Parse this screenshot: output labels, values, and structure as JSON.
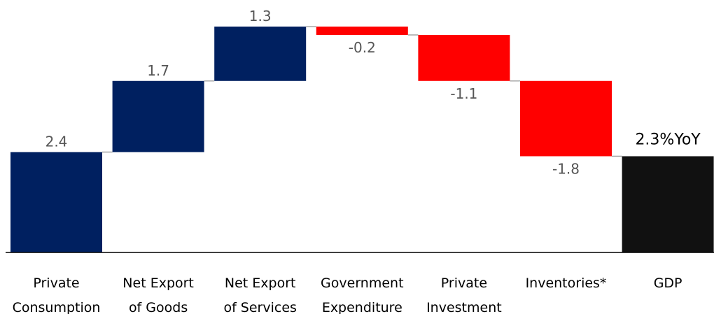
{
  "chart_data": {
    "type": "bar",
    "subtype": "waterfall",
    "title": "",
    "xlabel": "",
    "ylabel": "",
    "categories": [
      [
        "Private",
        "Consumption"
      ],
      [
        "Net Export",
        "of Goods"
      ],
      [
        "Net Export",
        "of Services"
      ],
      [
        "Government",
        "Expenditure"
      ],
      [
        "Private",
        "Investment"
      ],
      [
        "Inventories*"
      ],
      [
        "GDP"
      ]
    ],
    "values": [
      2.4,
      1.7,
      1.3,
      -0.2,
      -1.1,
      -1.8,
      2.3
    ],
    "value_labels": [
      "2.4",
      "1.7",
      "1.3",
      "-0.2",
      "-1.1",
      "-1.8",
      "2.3%YoY"
    ],
    "total_index": 6,
    "ylim": [
      0,
      5.4
    ],
    "grid": false,
    "legend": "none",
    "colors": {
      "positive": "#002060",
      "negative": "#ff0000",
      "total": "#111111",
      "connector": "#a6a6a6",
      "baseline": "#000000"
    }
  }
}
